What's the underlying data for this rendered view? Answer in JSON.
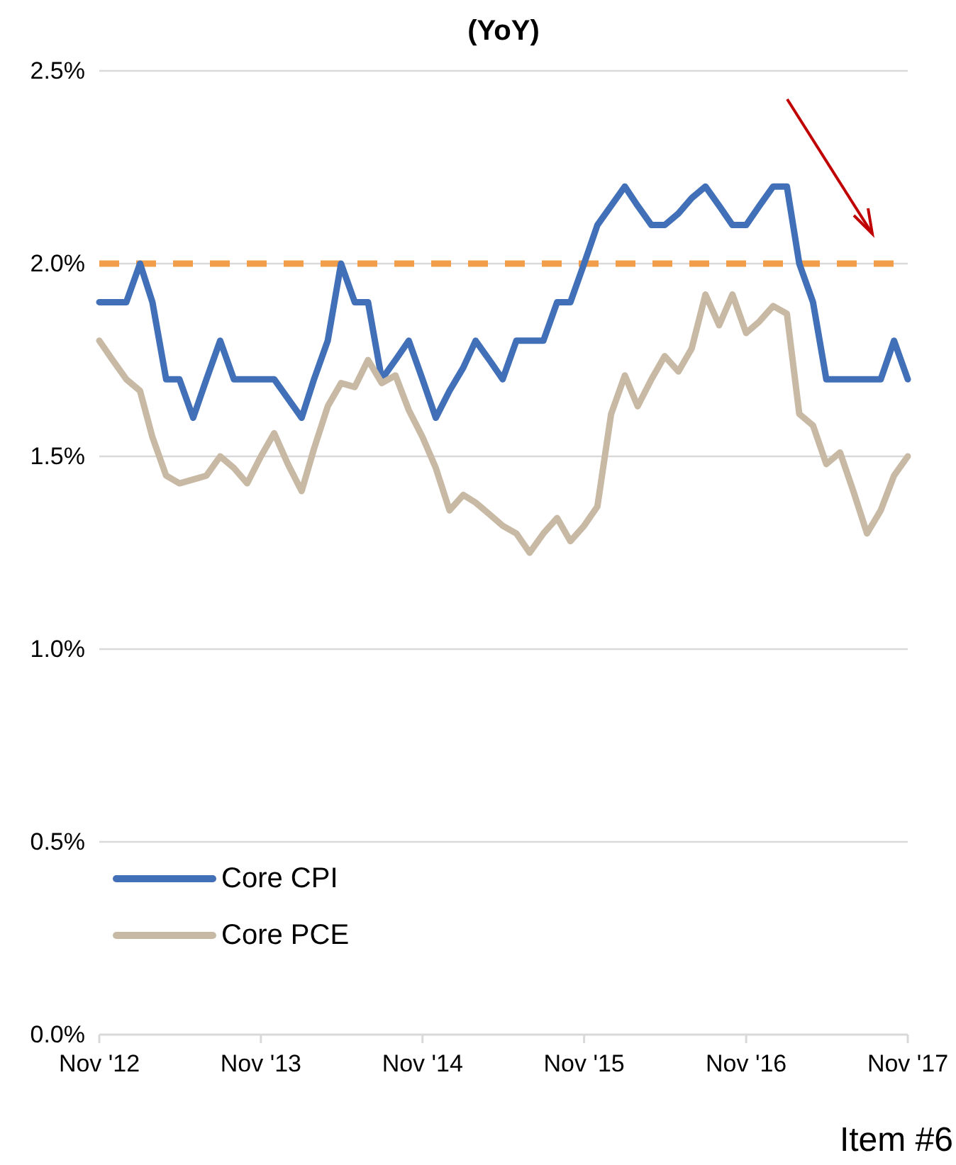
{
  "chart_data": {
    "type": "line",
    "title": "(YoY)",
    "x": [
      "2012-11",
      "2012-12",
      "2013-01",
      "2013-02",
      "2013-03",
      "2013-04",
      "2013-05",
      "2013-06",
      "2013-07",
      "2013-08",
      "2013-09",
      "2013-10",
      "2013-11",
      "2013-12",
      "2014-01",
      "2014-02",
      "2014-03",
      "2014-04",
      "2014-05",
      "2014-06",
      "2014-07",
      "2014-08",
      "2014-09",
      "2014-10",
      "2014-11",
      "2014-12",
      "2015-01",
      "2015-02",
      "2015-03",
      "2015-04",
      "2015-05",
      "2015-06",
      "2015-07",
      "2015-08",
      "2015-09",
      "2015-10",
      "2015-11",
      "2015-12",
      "2016-01",
      "2016-02",
      "2016-03",
      "2016-04",
      "2016-05",
      "2016-06",
      "2016-07",
      "2016-08",
      "2016-09",
      "2016-10",
      "2016-11",
      "2016-12",
      "2017-01",
      "2017-02",
      "2017-03",
      "2017-04",
      "2017-05",
      "2017-06",
      "2017-07",
      "2017-08",
      "2017-09",
      "2017-10",
      "2017-11"
    ],
    "series": [
      {
        "name": "Core CPI",
        "color": "#4270b8",
        "values": [
          1.9,
          1.9,
          1.9,
          2.0,
          1.9,
          1.7,
          1.7,
          1.6,
          1.7,
          1.8,
          1.7,
          1.7,
          1.7,
          1.7,
          1.65,
          1.6,
          1.7,
          1.8,
          2.0,
          1.9,
          1.9,
          1.7,
          1.75,
          1.8,
          1.7,
          1.6,
          1.67,
          1.73,
          1.8,
          1.75,
          1.7,
          1.8,
          1.8,
          1.8,
          1.9,
          1.9,
          2.0,
          2.1,
          2.15,
          2.2,
          2.15,
          2.1,
          2.1,
          2.13,
          2.17,
          2.2,
          2.15,
          2.1,
          2.1,
          2.15,
          2.2,
          2.2,
          2.0,
          1.9,
          1.7,
          1.7,
          1.7,
          1.7,
          1.7,
          1.8,
          1.7
        ]
      },
      {
        "name": "Core PCE",
        "color": "#c8b9a5",
        "values": [
          1.8,
          1.75,
          1.7,
          1.67,
          1.55,
          1.45,
          1.43,
          1.44,
          1.45,
          1.5,
          1.47,
          1.43,
          1.5,
          1.56,
          1.48,
          1.41,
          1.52,
          1.63,
          1.69,
          1.68,
          1.75,
          1.69,
          1.71,
          1.62,
          1.55,
          1.47,
          1.36,
          1.4,
          1.38,
          1.35,
          1.32,
          1.3,
          1.25,
          1.3,
          1.34,
          1.28,
          1.32,
          1.37,
          1.61,
          1.71,
          1.63,
          1.7,
          1.76,
          1.72,
          1.78,
          1.92,
          1.84,
          1.92,
          1.82,
          1.85,
          1.89,
          1.87,
          1.61,
          1.58,
          1.48,
          1.51,
          1.41,
          1.3,
          1.36,
          1.45,
          1.5
        ]
      }
    ],
    "xlim": [
      "2012-11",
      "2017-11"
    ],
    "xticks": [
      {
        "value": "2012-11",
        "label": "Nov '12"
      },
      {
        "value": "2013-11",
        "label": "Nov '13"
      },
      {
        "value": "2014-11",
        "label": "Nov '14"
      },
      {
        "value": "2015-11",
        "label": "Nov '15"
      },
      {
        "value": "2016-11",
        "label": "Nov '16"
      },
      {
        "value": "2017-11",
        "label": "Nov '17"
      }
    ],
    "ylim": [
      0,
      2.5
    ],
    "yticks": [
      {
        "value": 0,
        "label": "0.0%"
      },
      {
        "value": 0.5,
        "label": "0.5%"
      },
      {
        "value": 1,
        "label": "1.0%"
      },
      {
        "value": 1.5,
        "label": "1.5%"
      },
      {
        "value": 2,
        "label": "2.0%"
      },
      {
        "value": 2.5,
        "label": "2.5%"
      }
    ],
    "ref_lines": [
      {
        "axis": "y",
        "value": 2,
        "color": "#f29d49",
        "line_style": "dashed"
      }
    ],
    "grid": "y",
    "legend": "bottom left",
    "marker": "none",
    "line_style": "solid",
    "annotations": [
      "Item #6"
    ]
  }
}
